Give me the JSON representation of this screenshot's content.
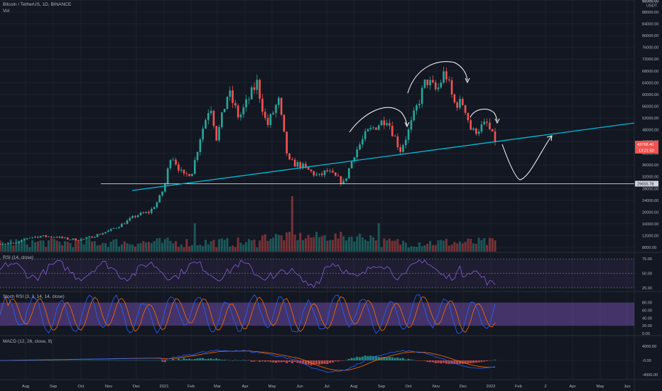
{
  "header": {
    "symbol_line": "Bitcoin / TetherUS, 1D, BINANCE",
    "vol_label": "Vol"
  },
  "panes": {
    "rsi_label": "RSI (14, close)",
    "stoch_label": "Stoch RSI (3, 3, 14, 14, close)",
    "macd_label": "MACD (12, 26, close, 9)"
  },
  "colors": {
    "background": "#131722",
    "up": "#26a69a",
    "down": "#ef5350",
    "trendline": "#00bcd4",
    "annotation": "#ffffff",
    "rsi_line": "#7e57c2",
    "stoch_k": "#2962ff",
    "stoch_d": "#ff6d00",
    "macd_line": "#2962ff",
    "signal_line": "#ff6d00",
    "price_badge": "#ef5350"
  },
  "chart_data": [
    {
      "type": "candlestick",
      "title": "Bitcoin / TetherUS, 1D, BINANCE",
      "price_scale_unit": "USDT",
      "y_ticks": [
        8000,
        12000,
        16000,
        20000,
        24000,
        28000,
        32000,
        36000,
        40000,
        44000,
        48000,
        52000,
        56000,
        60000,
        64000,
        68000,
        72000,
        76000,
        80000,
        84000,
        88000,
        92000
      ],
      "y_tick_labels": [
        "8000.00",
        "12000.00",
        "16000.00",
        "20000.00",
        "24000.00",
        "28000.00",
        "32000.00",
        "36000.00",
        "40000.00",
        "44000.00",
        "48000.00",
        "52000.00",
        "56000.00",
        "60000.00",
        "64000.00",
        "68000.00",
        "72000.00",
        "76000.00",
        "80000.00",
        "84000.00",
        "88000.00",
        "92000.00"
      ],
      "top_label": "92000.00",
      "x_tick_labels": [
        "Aug",
        "Sep",
        "Oct",
        "Nov",
        "Dec",
        "2021",
        "Feb",
        "Mar",
        "Apr",
        "May",
        "Jun",
        "Jul",
        "Aug",
        "Sep",
        "Oct",
        "Nov",
        "Dec",
        "2022",
        "Feb",
        "2",
        "Apr",
        "May",
        "Jun"
      ],
      "series_close": [
        [
          "2020-07-01",
          9200
        ],
        [
          "2020-07-20",
          9400
        ],
        [
          "2020-08-01",
          11300
        ],
        [
          "2020-08-15",
          11800
        ],
        [
          "2020-09-01",
          11600
        ],
        [
          "2020-09-15",
          10800
        ],
        [
          "2020-10-01",
          10600
        ],
        [
          "2020-10-20",
          12500
        ],
        [
          "2020-11-01",
          13800
        ],
        [
          "2020-11-15",
          16000
        ],
        [
          "2020-12-01",
          19000
        ],
        [
          "2020-12-15",
          20000
        ],
        [
          "2020-12-25",
          24000
        ],
        [
          "2021-01-01",
          29000
        ],
        [
          "2021-01-08",
          40000
        ],
        [
          "2021-01-22",
          32000
        ],
        [
          "2021-02-01",
          34000
        ],
        [
          "2021-02-10",
          46000
        ],
        [
          "2021-02-21",
          57000
        ],
        [
          "2021-02-28",
          45000
        ],
        [
          "2021-03-13",
          61000
        ],
        [
          "2021-03-25",
          52000
        ],
        [
          "2021-04-14",
          64000
        ],
        [
          "2021-04-25",
          49000
        ],
        [
          "2021-05-08",
          58000
        ],
        [
          "2021-05-19",
          37000
        ],
        [
          "2021-06-01",
          36000
        ],
        [
          "2021-06-22",
          32000
        ],
        [
          "2021-07-01",
          34000
        ],
        [
          "2021-07-20",
          29800
        ],
        [
          "2021-08-01",
          40000
        ],
        [
          "2021-08-15",
          47000
        ],
        [
          "2021-09-06",
          52000
        ],
        [
          "2021-09-21",
          41000
        ],
        [
          "2021-10-01",
          48000
        ],
        [
          "2021-10-20",
          65000
        ],
        [
          "2021-11-01",
          61000
        ],
        [
          "2021-11-10",
          68000
        ],
        [
          "2021-11-20",
          57000
        ],
        [
          "2021-12-01",
          57000
        ],
        [
          "2021-12-10",
          47000
        ],
        [
          "2021-12-27",
          50000
        ],
        [
          "2022-01-05",
          43768.4
        ]
      ],
      "horizontal_line": 29655.78,
      "horizontal_line_label": "29655.78",
      "last_price_label": "43768.40",
      "countdown_label": "13:21:50",
      "annotations": [
        "trend line",
        "head and shoulders arcs",
        "projected V path"
      ]
    },
    {
      "type": "line",
      "title": "RSI (14, close)",
      "levels": [
        25,
        50,
        75
      ],
      "level_labels": [
        "25.00",
        "50.00",
        "75.00"
      ],
      "ylim": [
        20,
        85
      ]
    },
    {
      "type": "line",
      "title": "Stoch RSI (3, 3, 14, 14, close)",
      "series": [
        {
          "name": "K"
        },
        {
          "name": "D"
        }
      ],
      "ylim": [
        0,
        100
      ],
      "level_labels": [
        "0.00",
        "20.00",
        "40.00",
        "60.00",
        "80.00"
      ]
    },
    {
      "type": "line",
      "title": "MACD (12, 26, close, 9)",
      "series": [
        {
          "name": "MACD"
        },
        {
          "name": "Signal"
        },
        {
          "name": "Histogram"
        }
      ],
      "tick_labels": [
        "-4000.00",
        "-0.00",
        "4000.00"
      ]
    }
  ]
}
